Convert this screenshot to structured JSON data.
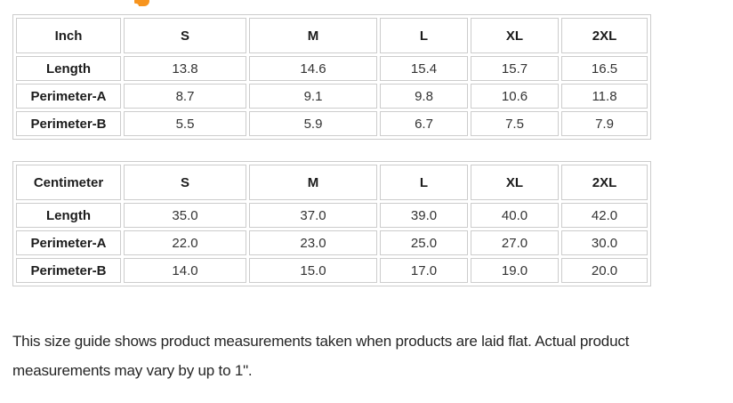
{
  "heading_fragment": {
    "description": "bottom sliver of an orange heading letter cropped by the top edge",
    "color": "#f7941e"
  },
  "tables": [
    {
      "unit_label": "Inch",
      "columns": [
        "S",
        "M",
        "L",
        "XL",
        "2XL"
      ],
      "rows": [
        {
          "label": "Length",
          "values": [
            "13.8",
            "14.6",
            "15.4",
            "15.7",
            "16.5"
          ]
        },
        {
          "label": "Perimeter-A",
          "values": [
            "8.7",
            "9.1",
            "9.8",
            "10.6",
            "11.8"
          ]
        },
        {
          "label": "Perimeter-B",
          "values": [
            "5.5",
            "5.9",
            "6.7",
            "7.5",
            "7.9"
          ]
        }
      ]
    },
    {
      "unit_label": "Centimeter",
      "columns": [
        "S",
        "M",
        "L",
        "XL",
        "2XL"
      ],
      "rows": [
        {
          "label": "Length",
          "values": [
            "35.0",
            "37.0",
            "39.0",
            "40.0",
            "42.0"
          ]
        },
        {
          "label": "Perimeter-A",
          "values": [
            "22.0",
            "23.0",
            "25.0",
            "27.0",
            "30.0"
          ]
        },
        {
          "label": "Perimeter-B",
          "values": [
            "14.0",
            "15.0",
            "17.0",
            "19.0",
            "20.0"
          ]
        }
      ]
    }
  ],
  "footer": {
    "note": "This size guide shows product measurements taken when products are laid flat. Actual product measurements may vary by up to 1\"."
  },
  "colors": {
    "table_border": "#cccccc",
    "header_text": "#1c1c1c",
    "value_text": "#333333",
    "note_text": "#262626",
    "accent_orange": "#f7941e"
  }
}
